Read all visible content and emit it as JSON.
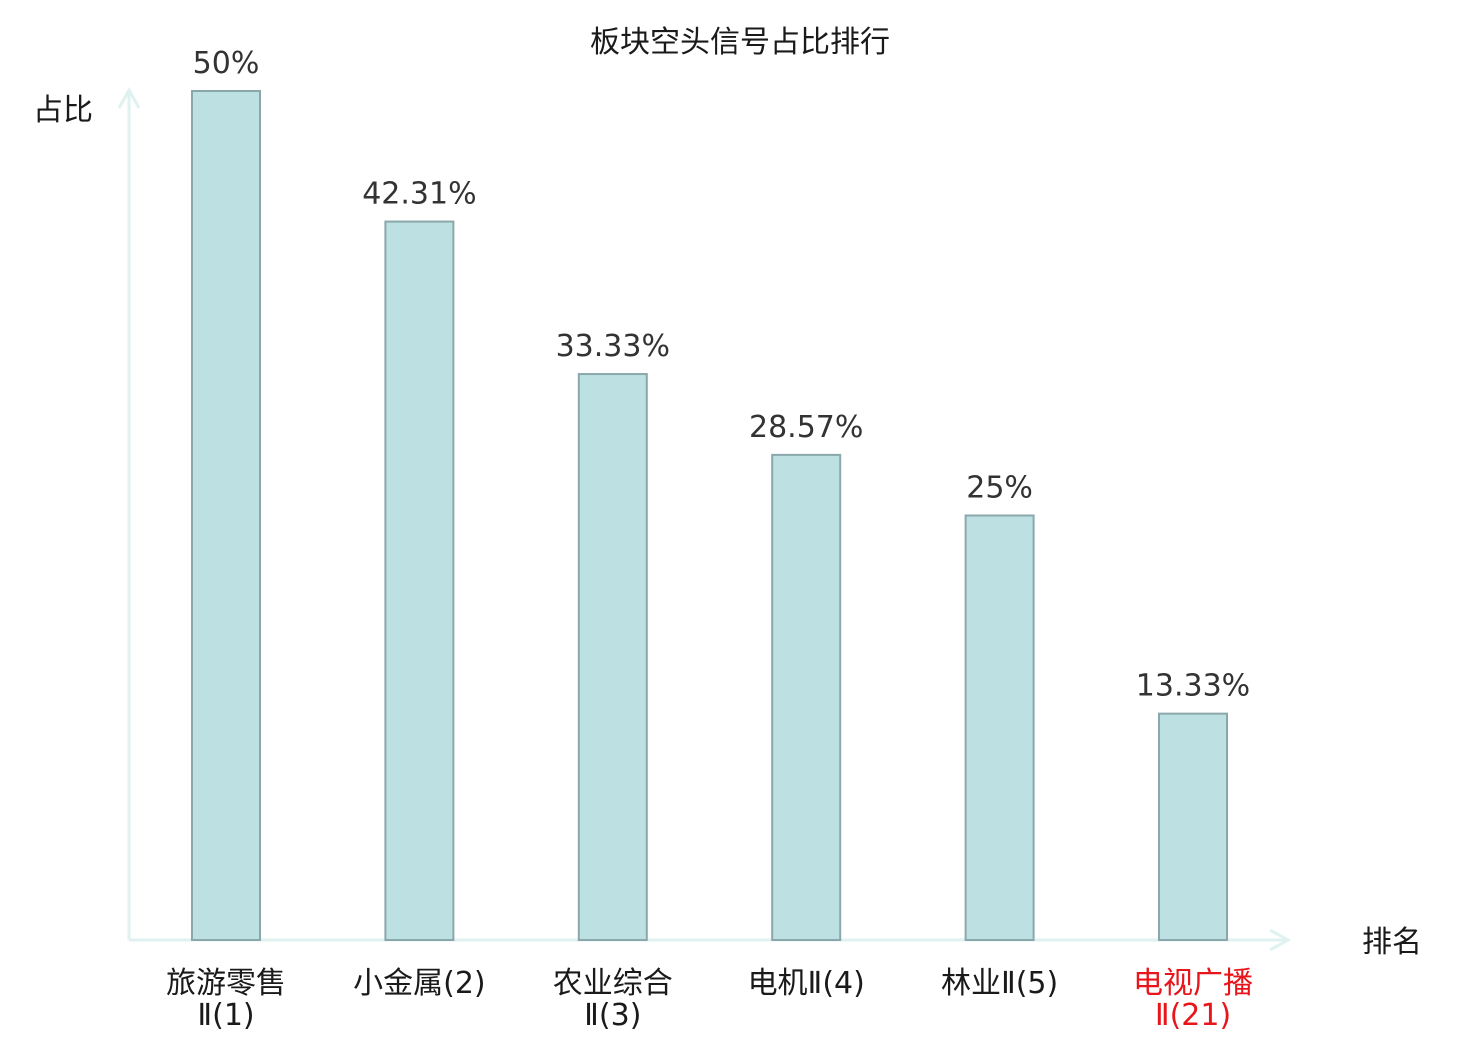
{
  "chart_data": {
    "type": "bar",
    "title": "板块空头信号占比排行",
    "ylabel": "占比",
    "xlabel": "排名",
    "ylim": [
      0,
      50
    ],
    "grid": false,
    "categories": [
      [
        "旅游零售",
        "Ⅱ(1)"
      ],
      [
        "小金属(2)"
      ],
      [
        "农业综合",
        "Ⅱ(3)"
      ],
      [
        "电机Ⅱ(4)"
      ],
      [
        "林业Ⅱ(5)"
      ],
      [
        "电视广播",
        "Ⅱ(21)"
      ]
    ],
    "values": [
      50,
      42.31,
      33.33,
      28.57,
      25,
      13.33
    ],
    "value_labels": [
      "50%",
      "42.31%",
      "33.33%",
      "28.57%",
      "25%",
      "13.33%"
    ],
    "highlight_index": 5,
    "colors": {
      "bar_fill": "#bde0e3",
      "bar_stroke": "#8aa8ab",
      "axis": "#dff2ef",
      "highlight_text": "#e8161b"
    }
  }
}
